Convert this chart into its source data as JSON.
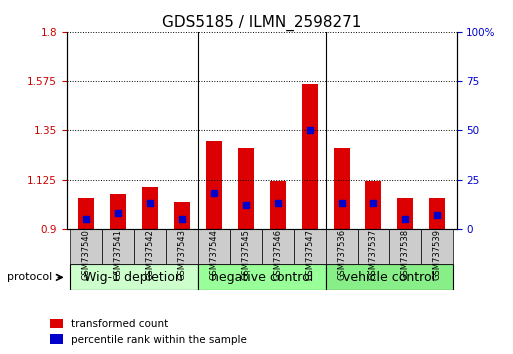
{
  "title": "GDS5185 / ILMN_2598271",
  "samples": [
    "GSM737540",
    "GSM737541",
    "GSM737542",
    "GSM737543",
    "GSM737544",
    "GSM737545",
    "GSM737546",
    "GSM737547",
    "GSM737536",
    "GSM737537",
    "GSM737538",
    "GSM737539"
  ],
  "transformed_count": [
    1.04,
    1.06,
    1.09,
    1.02,
    1.3,
    1.27,
    1.12,
    1.56,
    1.27,
    1.12,
    1.04,
    1.04
  ],
  "percentile_rank": [
    5,
    8,
    13,
    5,
    18,
    12,
    13,
    50,
    13,
    13,
    5,
    7
  ],
  "base": 0.9,
  "ylim": [
    0.9,
    1.8
  ],
  "yticks_left": [
    0.9,
    1.125,
    1.35,
    1.575,
    1.8
  ],
  "yticks_right": [
    0,
    25,
    50,
    75,
    100
  ],
  "groups": [
    {
      "label": "Wig-1 depletion",
      "start": 0,
      "end": 4,
      "color": "#ccffcc"
    },
    {
      "label": "negative control",
      "start": 4,
      "end": 8,
      "color": "#99ff99"
    },
    {
      "label": "vehicle control",
      "start": 8,
      "end": 12,
      "color": "#88ee88"
    }
  ],
  "bar_color": "#dd0000",
  "percentile_color": "#0000cc",
  "tick_label_color_left": "#cc0000",
  "tick_label_color_right": "#0000cc",
  "grid_color": "#000000",
  "bg_color": "#ffffff",
  "plot_bg": "#ffffff",
  "bar_width": 0.5,
  "legend_red_label": "transformed count",
  "legend_blue_label": "percentile rank within the sample",
  "protocol_label": "protocol",
  "group_label_fontsize": 9,
  "tick_fontsize": 7.5,
  "title_fontsize": 11,
  "sample_box_color": "#cccccc"
}
